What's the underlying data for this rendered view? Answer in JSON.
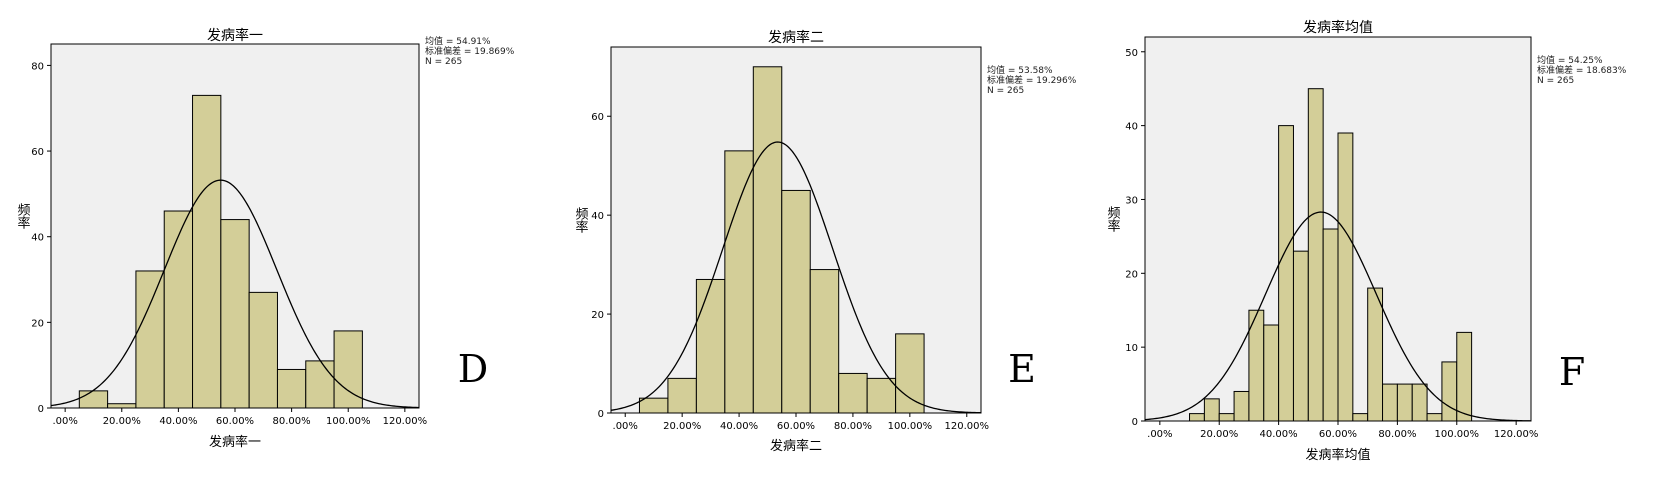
{
  "chart_data": [
    {
      "type": "bar",
      "title": "发病率一",
      "xlabel": "发病率一",
      "ylabel": "频率",
      "panel_letter": "D",
      "stats": [
        "均值 = 54.91%",
        "标准偏差 = 19.869%",
        "N = 265"
      ],
      "mean": 54.91,
      "std": 19.869,
      "n": 265,
      "bin_width": 10,
      "x_ticks": [
        ".00%",
        "20.00%",
        "40.00%",
        "60.00%",
        "80.00%",
        "100.00%",
        "120.00%"
      ],
      "x_tick_values": [
        0,
        20,
        40,
        60,
        80,
        100,
        120
      ],
      "xlim": [
        -5,
        125
      ],
      "y_ticks": [
        "0",
        "20",
        "40",
        "60",
        "80"
      ],
      "y_tick_values": [
        0,
        20,
        40,
        60,
        80
      ],
      "ylim": [
        0,
        85
      ],
      "bins": [
        {
          "x0": 5,
          "x1": 15,
          "count": 4
        },
        {
          "x0": 15,
          "x1": 25,
          "count": 1
        },
        {
          "x0": 25,
          "x1": 35,
          "count": 32
        },
        {
          "x0": 35,
          "x1": 45,
          "count": 46
        },
        {
          "x0": 45,
          "x1": 55,
          "count": 73
        },
        {
          "x0": 55,
          "x1": 65,
          "count": 44
        },
        {
          "x0": 65,
          "x1": 75,
          "count": 27
        },
        {
          "x0": 75,
          "x1": 85,
          "count": 9
        },
        {
          "x0": 85,
          "x1": 95,
          "count": 11
        },
        {
          "x0": 95,
          "x1": 105,
          "count": 18
        }
      ]
    },
    {
      "type": "bar",
      "title": "发病率二",
      "xlabel": "发病率二",
      "ylabel": "频率",
      "panel_letter": "E",
      "stats": [
        "均值 = 53.58%",
        "标准偏差 = 19.296%",
        "N = 265"
      ],
      "mean": 53.58,
      "std": 19.296,
      "n": 265,
      "bin_width": 10,
      "x_ticks": [
        ".00%",
        "20.00%",
        "40.00%",
        "60.00%",
        "80.00%",
        "100.00%",
        "120.00%"
      ],
      "x_tick_values": [
        0,
        20,
        40,
        60,
        80,
        100,
        120
      ],
      "xlim": [
        -5,
        125
      ],
      "y_ticks": [
        "0",
        "20",
        "40",
        "60"
      ],
      "y_tick_values": [
        0,
        20,
        40,
        60
      ],
      "ylim": [
        0,
        74
      ],
      "bins": [
        {
          "x0": 5,
          "x1": 15,
          "count": 3
        },
        {
          "x0": 15,
          "x1": 25,
          "count": 7
        },
        {
          "x0": 25,
          "x1": 35,
          "count": 27
        },
        {
          "x0": 35,
          "x1": 45,
          "count": 53
        },
        {
          "x0": 45,
          "x1": 55,
          "count": 70
        },
        {
          "x0": 55,
          "x1": 65,
          "count": 45
        },
        {
          "x0": 65,
          "x1": 75,
          "count": 29
        },
        {
          "x0": 75,
          "x1": 85,
          "count": 8
        },
        {
          "x0": 85,
          "x1": 95,
          "count": 7
        },
        {
          "x0": 95,
          "x1": 105,
          "count": 16
        }
      ]
    },
    {
      "type": "bar",
      "title": "发病率均值",
      "xlabel": "发病率均值",
      "ylabel": "频率",
      "panel_letter": "F",
      "stats": [
        "均值 = 54.25%",
        "标准偏差 = 18.683%",
        "N = 265"
      ],
      "mean": 54.25,
      "std": 18.683,
      "n": 265,
      "bin_width": 5,
      "x_ticks": [
        ".00%",
        "20.00%",
        "40.00%",
        "60.00%",
        "80.00%",
        "100.00%",
        "120.00%"
      ],
      "x_tick_values": [
        0,
        20,
        40,
        60,
        80,
        100,
        120
      ],
      "xlim": [
        -5,
        125
      ],
      "y_ticks": [
        "0",
        "10",
        "20",
        "30",
        "40",
        "50"
      ],
      "y_tick_values": [
        0,
        10,
        20,
        30,
        40,
        50
      ],
      "ylim": [
        0,
        52
      ],
      "bins": [
        {
          "x0": 10,
          "x1": 15,
          "count": 1
        },
        {
          "x0": 15,
          "x1": 20,
          "count": 3
        },
        {
          "x0": 20,
          "x1": 25,
          "count": 1
        },
        {
          "x0": 25,
          "x1": 30,
          "count": 4
        },
        {
          "x0": 30,
          "x1": 35,
          "count": 15
        },
        {
          "x0": 35,
          "x1": 40,
          "count": 13
        },
        {
          "x0": 40,
          "x1": 45,
          "count": 40
        },
        {
          "x0": 45,
          "x1": 50,
          "count": 23
        },
        {
          "x0": 50,
          "x1": 55,
          "count": 45
        },
        {
          "x0": 55,
          "x1": 60,
          "count": 26
        },
        {
          "x0": 60,
          "x1": 65,
          "count": 39
        },
        {
          "x0": 65,
          "x1": 70,
          "count": 1
        },
        {
          "x0": 70,
          "x1": 75,
          "count": 18
        },
        {
          "x0": 75,
          "x1": 80,
          "count": 5
        },
        {
          "x0": 80,
          "x1": 85,
          "count": 5
        },
        {
          "x0": 85,
          "x1": 90,
          "count": 5
        },
        {
          "x0": 90,
          "x1": 95,
          "count": 1
        },
        {
          "x0": 95,
          "x1": 100,
          "count": 8
        },
        {
          "x0": 100,
          "x1": 105,
          "count": 12
        }
      ]
    }
  ]
}
